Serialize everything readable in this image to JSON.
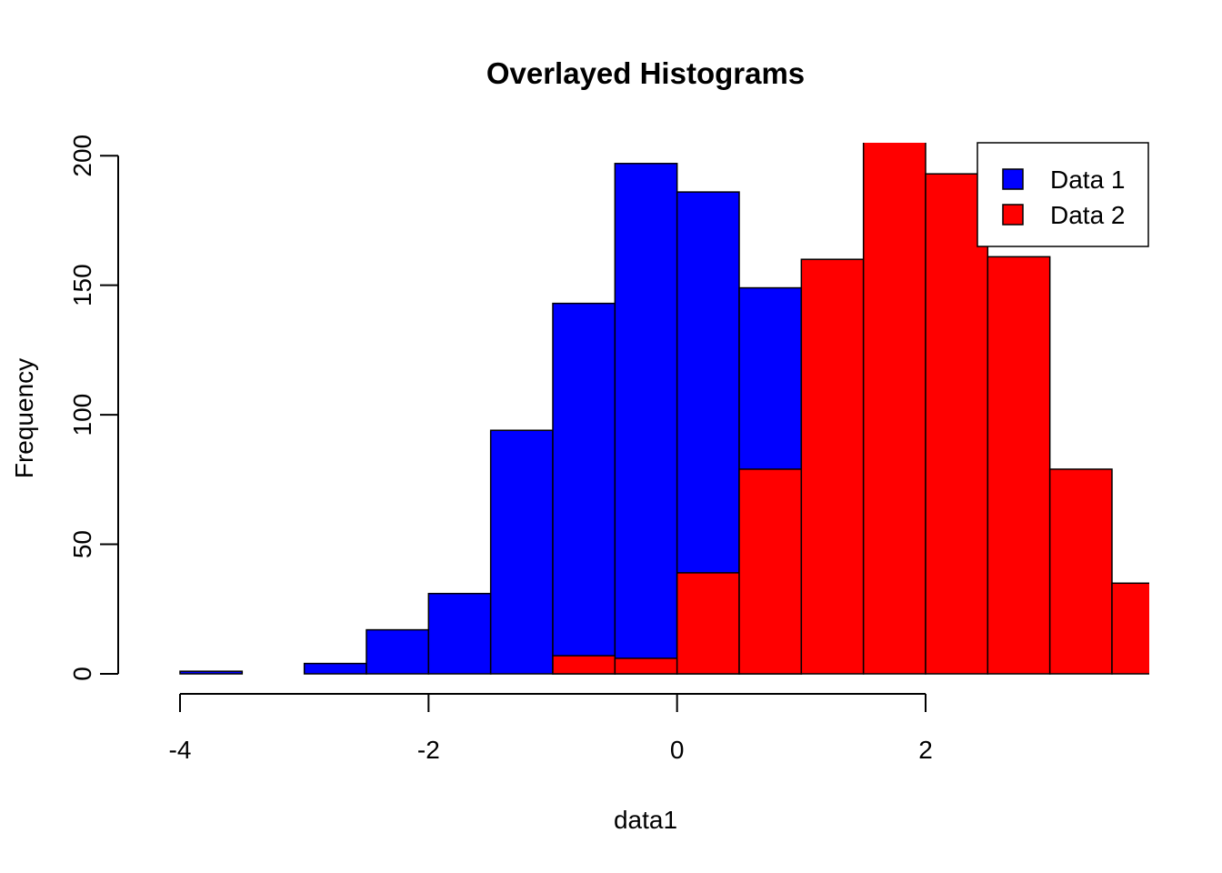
{
  "chart_data": {
    "type": "bar",
    "subtype": "histogram-overlay",
    "title": "Overlayed Histograms",
    "xlabel": "data1",
    "ylabel": "Frequency",
    "xlim": [
      -4.0,
      3.8
    ],
    "ylim": [
      0,
      205
    ],
    "x_ticks": [
      -4,
      -2,
      0,
      2
    ],
    "y_ticks": [
      0,
      50,
      100,
      150,
      200
    ],
    "bin_width": 0.5,
    "legend": {
      "position": "top-right",
      "entries": [
        "Data 1",
        "Data 2"
      ]
    },
    "grid": false,
    "series": [
      {
        "name": "Data 1",
        "color": "#0000ff",
        "bins": [
          {
            "start": -4.0,
            "end": -3.5,
            "count": 1
          },
          {
            "start": -3.5,
            "end": -3.0,
            "count": 0
          },
          {
            "start": -3.0,
            "end": -2.5,
            "count": 4
          },
          {
            "start": -2.5,
            "end": -2.0,
            "count": 17
          },
          {
            "start": -2.0,
            "end": -1.5,
            "count": 31
          },
          {
            "start": -1.5,
            "end": -1.0,
            "count": 94
          },
          {
            "start": -1.0,
            "end": -0.5,
            "count": 143
          },
          {
            "start": -0.5,
            "end": 0.0,
            "count": 197
          },
          {
            "start": 0.0,
            "end": 0.5,
            "count": 186
          },
          {
            "start": 0.5,
            "end": 1.0,
            "count": 149
          }
        ]
      },
      {
        "name": "Data 2",
        "color": "#ff0000",
        "bins": [
          {
            "start": -1.0,
            "end": -0.5,
            "count": 7
          },
          {
            "start": -0.5,
            "end": 0.0,
            "count": 6
          },
          {
            "start": 0.0,
            "end": 0.5,
            "count": 39
          },
          {
            "start": 0.5,
            "end": 1.0,
            "count": 79
          },
          {
            "start": 1.0,
            "end": 1.5,
            "count": 160
          },
          {
            "start": 1.5,
            "end": 2.0,
            "count": 220
          },
          {
            "start": 2.0,
            "end": 2.5,
            "count": 193
          },
          {
            "start": 2.5,
            "end": 3.0,
            "count": 161
          },
          {
            "start": 3.0,
            "end": 3.5,
            "count": 79
          },
          {
            "start": 3.5,
            "end": 4.0,
            "count": 35
          }
        ]
      }
    ]
  }
}
